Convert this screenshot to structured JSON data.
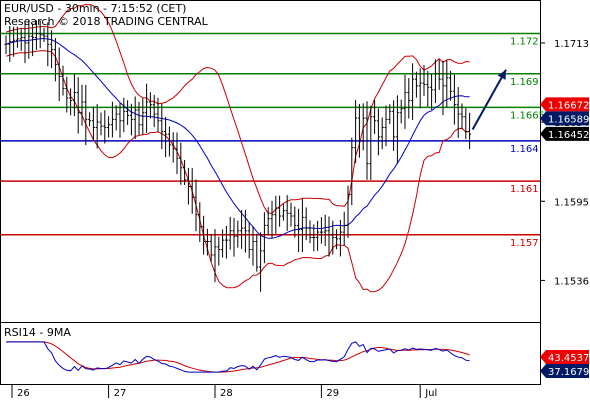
{
  "header": {
    "line1": "EUR/USD - 30min - 7:15:52 (CET)",
    "line2": "Research © 2018 TRADING CENTRAL"
  },
  "rsi_panel": {
    "label": "RSI14 - 9MA"
  },
  "colors": {
    "level_green": "#008000",
    "level_blue": "#0000cc",
    "level_red": "#cc0000",
    "bands": "#cc0000",
    "ma": "#0000cc",
    "arrow": "#001a66",
    "tag_red": "#ee0000",
    "tag_blue": "#001a66",
    "tag_black": "#000000"
  },
  "chart_data": [
    {
      "type": "candlestick",
      "title": "EUR/USD - 30min - 7:15:52 (CET)",
      "ylim": [
        1.1505,
        1.1745
      ],
      "grid": false,
      "y_ticks": [
        1.1713,
        1.1654,
        1.1595,
        1.1536
      ],
      "y_tick_labels": [
        "1.1713",
        "1.1654",
        "1.1595",
        "1.1536"
      ],
      "x_day_labels": [
        {
          "label": "26",
          "bar": 0
        },
        {
          "label": "27",
          "bar": 27
        },
        {
          "label": "28",
          "bar": 55
        },
        {
          "label": "29",
          "bar": 83
        },
        {
          "label": "Jul",
          "bar": 109
        }
      ],
      "levels": [
        {
          "label": "1.172",
          "value": 1.172,
          "color": "level_green"
        },
        {
          "label": "1.169",
          "value": 1.169,
          "color": "level_green"
        },
        {
          "label": "1.1665",
          "value": 1.1665,
          "color": "level_green"
        },
        {
          "label": "1.164",
          "value": 1.164,
          "color": "level_blue"
        },
        {
          "label": "1.161",
          "value": 1.161,
          "color": "level_red"
        },
        {
          "label": "1.157",
          "value": 1.157,
          "color": "level_red"
        }
      ],
      "price_tags": [
        {
          "label": "1.16672",
          "value": 1.16672,
          "color": "tag_red"
        },
        {
          "label": "1.16589",
          "value": 1.16589,
          "color": "tag_blue"
        },
        {
          "label": "1.16452",
          "value": 1.16452,
          "color": "tag_black"
        }
      ],
      "close_series": [
        1.1712,
        1.1714,
        1.1715,
        1.1716,
        1.1717,
        1.1713,
        1.1718,
        1.1717,
        1.172,
        1.1719,
        1.1718,
        1.1712,
        1.1708,
        1.1697,
        1.1688,
        1.1679,
        1.1672,
        1.167,
        1.1676,
        1.1661,
        1.1669,
        1.1656,
        1.1655,
        1.165,
        1.1654,
        1.1651,
        1.165,
        1.1652,
        1.1656,
        1.166,
        1.1655,
        1.1662,
        1.1659,
        1.1656,
        1.1663,
        1.1652,
        1.1661,
        1.1669,
        1.1667,
        1.166,
        1.1655,
        1.1647,
        1.1645,
        1.1637,
        1.1634,
        1.1627,
        1.162,
        1.1611,
        1.1606,
        1.1598,
        1.1585,
        1.1576,
        1.1565,
        1.1565,
        1.1555,
        1.1561,
        1.1559,
        1.1566,
        1.1566,
        1.1573,
        1.1569,
        1.1573,
        1.1575,
        1.1573,
        1.1559,
        1.1565,
        1.1546,
        1.1558,
        1.1577,
        1.1582,
        1.1585,
        1.159,
        1.1584,
        1.1588,
        1.1586,
        1.1584,
        1.1577,
        1.1574,
        1.1583,
        1.1575,
        1.1568,
        1.1568,
        1.1572,
        1.1572,
        1.1573,
        1.157,
        1.1568,
        1.1567,
        1.1572,
        1.1577,
        1.16,
        1.1635,
        1.1657,
        1.164,
        1.1657,
        1.1623,
        1.1658,
        1.1655,
        1.1643,
        1.165,
        1.1656,
        1.1662,
        1.1643,
        1.1661,
        1.1664,
        1.1676,
        1.167,
        1.1686,
        1.1681,
        1.1683,
        1.1682,
        1.168,
        1.1678,
        1.169,
        1.1686,
        1.1681,
        1.1687,
        1.1677,
        1.1667,
        1.166,
        1.1658,
        1.1647,
        1.1645
      ],
      "projection_arrow": {
        "from": 1.1647,
        "to": 1.169
      }
    },
    {
      "type": "line",
      "title": "RSI14 - 9MA",
      "series": [
        {
          "name": "RSI14",
          "last_value_label": "37.1679",
          "color": "#0000cc"
        },
        {
          "name": "9MA",
          "last_value_label": "43.4537",
          "color": "#cc0000"
        }
      ]
    }
  ]
}
